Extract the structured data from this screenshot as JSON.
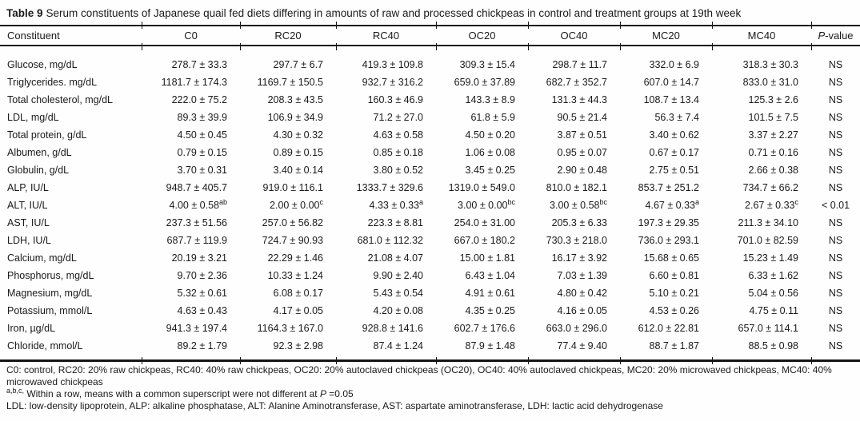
{
  "page": {
    "title_label": "Table 9",
    "title_text": "Serum constituents of Japanese quail fed diets differing in amounts of raw and processed chickpeas in control and treatment groups at 19th week"
  },
  "table": {
    "columns": [
      "Constituent",
      "C0",
      "RC20",
      "RC40",
      "OC20",
      "OC40",
      "MC20",
      "MC40",
      "*P*-value"
    ],
    "rows": [
      {
        "constituent": "Glucose, mg/dL",
        "values": [
          "278.7 ± 33.3",
          "297.7 ± 6.7",
          "419.3 ± 109.8",
          "309.3 ± 15.4",
          "298.7 ± 11.7",
          "332.0 ± 6.9",
          "318.3 ± 30.3"
        ],
        "p_value": "NS"
      },
      {
        "constituent": "Triglycerides. mg/dL",
        "values": [
          "1181.7 ± 174.3",
          "1169.7 ± 150.5",
          "932.7 ± 316.2",
          "659.0 ± 37.89",
          "682.7 ± 352.7",
          "607.0 ± 14.7",
          "833.0 ± 31.0"
        ],
        "p_value": "NS"
      },
      {
        "constituent": "Total cholesterol, mg/dL",
        "values": [
          "222.0 ± 75.2",
          "208.3 ± 43.5",
          "160.3 ± 46.9",
          "143.3 ± 8.9",
          "131.3 ± 44.3",
          "108.7 ± 13.4",
          "125.3 ± 2.6"
        ],
        "p_value": "NS"
      },
      {
        "constituent": "LDL, mg/dL",
        "values": [
          "89.3 ± 39.9",
          "106.9 ± 34.9",
          "71.2 ± 27.0",
          "61.8 ± 5.9",
          "90.5 ± 21.4",
          "56.3 ± 7.4",
          "101.5 ± 7.5"
        ],
        "p_value": "NS"
      },
      {
        "constituent": "Total protein, g/dL",
        "values": [
          "4.50 ± 0.45",
          "4.30 ± 0.32",
          "4.63 ± 0.58",
          "4.50 ± 0.20",
          "3.87 ± 0.51",
          "3.40 ± 0.62",
          "3.37 ± 2.27"
        ],
        "p_value": "NS"
      },
      {
        "constituent": "Albumen, g/dL",
        "values": [
          "0.79 ± 0.15",
          "0.89 ± 0.15",
          "0.85 ± 0.18",
          "1.06 ± 0.08",
          "0.95 ± 0.07",
          "0.67 ± 0.17",
          "0.71 ± 0.16"
        ],
        "p_value": "NS"
      },
      {
        "constituent": "Globulin, g/dL",
        "values": [
          "3.70 ± 0.31",
          "3.40 ± 0.14",
          "3.80 ± 0.52",
          "3.45 ± 0.25",
          "2.90 ± 0.48",
          "2.75 ± 0.51",
          "2.66 ± 0.38"
        ],
        "p_value": "NS"
      },
      {
        "constituent": "ALP, IU/L",
        "values": [
          "948.7 ± 405.7",
          "919.0 ± 116.1",
          "1333.7 ± 329.6",
          "1319.0 ± 549.0",
          "810.0 ± 182.1",
          "853.7 ± 251.2",
          "734.7 ± 66.2"
        ],
        "p_value": "NS"
      },
      {
        "constituent": "ALT, IU/L",
        "values": [
          "4.00 ± 0.58^{ab}",
          "2.00 ± 0.00^{c}",
          "4.33 ± 0.33^{a}",
          "3.00 ± 0.00^{bc}",
          "3.00 ± 0.58^{bc}",
          "4.67 ± 0.33^{a}",
          "2.67 ± 0.33^{c}"
        ],
        "p_value": "< 0.01"
      },
      {
        "constituent": "AST, IU/L",
        "values": [
          "237.3 ± 51.56",
          "257.0 ± 56.82",
          "223.3 ± 8.81",
          "254.0 ± 31.00",
          "205.3 ± 6.33",
          "197.3 ± 29.35",
          "211.3 ± 34.10"
        ],
        "p_value": "NS"
      },
      {
        "constituent": "LDH, IU/L",
        "values": [
          "687.7 ± 119.9",
          "724.7 ± 90.93",
          "681.0 ± 112.32",
          "667.0 ± 180.2",
          "730.3 ± 218.0",
          "736.0 ± 293.1",
          "701.0 ± 82.59"
        ],
        "p_value": "NS"
      },
      {
        "constituent": "Calcium, mg/dL",
        "values": [
          "20.19 ± 3.21",
          "22.29 ± 1.46",
          "21.08 ± 4.07",
          "15.00 ± 1.81",
          "16.17 ± 3.92",
          "15.68 ± 0.65",
          "15.23 ± 1.49"
        ],
        "p_value": "NS"
      },
      {
        "constituent": "Phosphorus, mg/dL",
        "values": [
          "9.70 ± 2.36",
          "10.33 ± 1.24",
          "9.90 ± 2.40",
          "6.43 ± 1.04",
          "7.03 ± 1.39",
          "6.60 ± 0.81",
          "6.33 ± 1.62"
        ],
        "p_value": "NS"
      },
      {
        "constituent": "Magnesium, mg/dL",
        "values": [
          "5.32 ± 0.61",
          "6.08 ± 0.17",
          "5.43 ± 0.54",
          "4.91 ± 0.61",
          "4.80 ± 0.42",
          "5.10 ± 0.21",
          "5.04 ± 0.56"
        ],
        "p_value": "NS"
      },
      {
        "constituent": "Potassium, mmol/L",
        "values": [
          "4.63 ± 0.43",
          "4.17 ± 0.05",
          "4.20 ± 0.08",
          "4.35 ± 0.25",
          "4.16 ± 0.05",
          "4.53 ± 0.26",
          "4.75 ± 0.11"
        ],
        "p_value": "NS"
      },
      {
        "constituent": "Iron, µg/dL",
        "values": [
          "941.3 ± 197.4",
          "1164.3 ± 167.0",
          "928.8 ± 141.6",
          "602.7 ± 176.6",
          "663.0 ± 296.0",
          "612.0 ± 22.81",
          "657.0 ± 114.1"
        ],
        "p_value": "NS"
      },
      {
        "constituent": "Chloride, mmol/L",
        "values": [
          "89.2 ± 1.79",
          "92.3 ± 2.98",
          "87.4 ± 1.24",
          "87.9 ± 1.48",
          "77.4 ± 9.40",
          "88.7 ± 1.87",
          "88.5 ± 0.98"
        ],
        "p_value": "NS"
      }
    ]
  },
  "footnotes": [
    {
      "sup": "",
      "text": "C0: control, RC20: 20% raw chickpeas, RC40: 40% raw chickpeas, OC20: 20% autoclaved chickpeas (OC20), OC40: 40% autoclaved chickpeas, MC20: 20% microwaved chickpeas, MC40: 40% microwaved chickpeas"
    },
    {
      "sup": "a,b,c,",
      "text": "Within a row, means with a common superscript were not different at *P* =0.05"
    },
    {
      "sup": "",
      "text": "LDL: low-density lipoprotein, ALP: alkaline phosphatase, ALT: Alanine Aminotransferase, AST: aspartate aminotransferase, LDH: lactic acid dehydrogenase"
    }
  ]
}
